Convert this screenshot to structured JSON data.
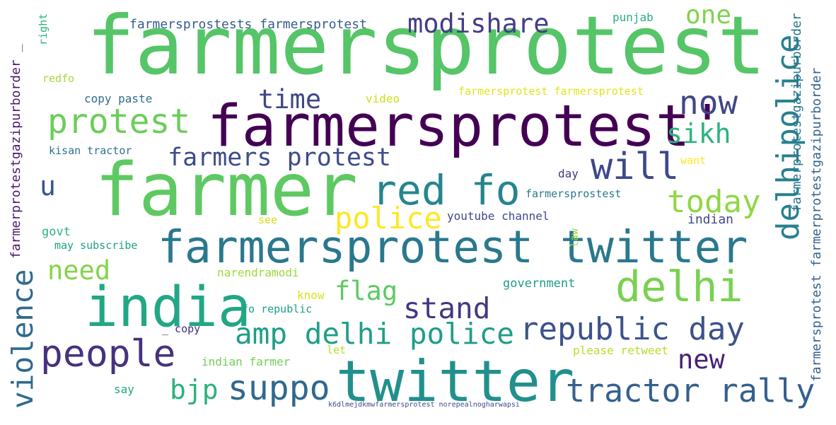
{
  "words": [
    {
      "text": "farmersprotest",
      "color": "#55c567"
    },
    {
      "text": "farmersprotest'",
      "color": "#440154"
    },
    {
      "text": "farmer",
      "color": "#5ec962"
    },
    {
      "text": "farmersprotest twitter",
      "color": "#2a788e"
    },
    {
      "text": "twitter",
      "color": "#21908d"
    },
    {
      "text": "india",
      "color": "#22a785"
    },
    {
      "text": "red fo",
      "color": "#25858e"
    },
    {
      "text": "delhi",
      "color": "#7ad151"
    },
    {
      "text": "people",
      "color": "#46327e"
    },
    {
      "text": "tractor rally",
      "color": "#35608d"
    },
    {
      "text": "republic day",
      "color": "#3b528b"
    },
    {
      "text": "suppo",
      "color": "#31688e"
    },
    {
      "text": "protest",
      "color": "#6ccd5a"
    },
    {
      "text": "will",
      "color": "#3e4989"
    },
    {
      "text": "now",
      "color": "#3f4788"
    },
    {
      "text": "delhipolice",
      "color": "#27808e"
    },
    {
      "text": "farmers protest",
      "color": "#3e4c8a"
    },
    {
      "text": "today",
      "color": "#8fd744"
    },
    {
      "text": "police",
      "color": "#fde725"
    },
    {
      "text": "amp delhi police",
      "color": "#1f9e89"
    },
    {
      "text": "stand",
      "color": "#453781"
    },
    {
      "text": "flag",
      "color": "#5ec962"
    },
    {
      "text": "violence",
      "color": "#306a8e"
    },
    {
      "text": "need",
      "color": "#84d44b"
    },
    {
      "text": "modishare",
      "color": "#433e85"
    },
    {
      "text": "sikh",
      "color": "#2db27d"
    },
    {
      "text": "time",
      "color": "#404688"
    },
    {
      "text": "one",
      "color": "#7fd34e"
    },
    {
      "text": "bjp",
      "color": "#2db27d"
    },
    {
      "text": "new",
      "color": "#482071"
    },
    {
      "text": "u",
      "color": "#3b528b"
    },
    {
      "text": "farmersprostests farmersprotest",
      "color": "#365c8d"
    },
    {
      "text": "farmerprotestgazipurborder _",
      "color": "#481a6c"
    },
    {
      "text": "farmerprotestgazipurborder",
      "color": "#2a768e"
    },
    {
      "text": "farmersprotest farmerprotestgazipurborder",
      "color": "#33638d"
    },
    {
      "text": "right",
      "color": "#2fb47c"
    },
    {
      "text": "redfo",
      "color": "#a2da37"
    },
    {
      "text": "copy paste",
      "color": "#2f6c8e"
    },
    {
      "text": "video",
      "color": "#d0e11c"
    },
    {
      "text": "farmersprotest farmersprotest",
      "color": "#e2e418"
    },
    {
      "text": "punjab",
      "color": "#28ae80"
    },
    {
      "text": "kisan tractor",
      "color": "#2c728e"
    },
    {
      "text": "want",
      "color": "#fde725"
    },
    {
      "text": "day",
      "color": "#453882"
    },
    {
      "text": "farmersprostest",
      "color": "#2a788e"
    },
    {
      "text": "youtube channel",
      "color": "#3f4889"
    },
    {
      "text": "indian",
      "color": "#3f4889"
    },
    {
      "text": "govt",
      "color": "#2db27d"
    },
    {
      "text": "may subscribe",
      "color": "#1fa187"
    },
    {
      "text": "see",
      "color": "#d5e21a"
    },
    {
      "text": "law",
      "color": "#a0da39"
    },
    {
      "text": "narendramodi",
      "color": "#9dd93b"
    },
    {
      "text": "government",
      "color": "#1e9b8a"
    },
    {
      "text": "know",
      "color": "#d8e219"
    },
    {
      "text": "fo republic",
      "color": "#1fa088"
    },
    {
      "text": "_ copy",
      "color": "#472d7b"
    },
    {
      "text": "let",
      "color": "#b5de2b"
    },
    {
      "text": "please retweet",
      "color": "#b5de2b"
    },
    {
      "text": "indian farmer",
      "color": "#70cf57"
    },
    {
      "text": "say",
      "color": "#22a884"
    },
    {
      "text": "k6dlmejdkmwfarmersprotest norepealnogharwapsi",
      "color": "#3e4a89"
    }
  ]
}
